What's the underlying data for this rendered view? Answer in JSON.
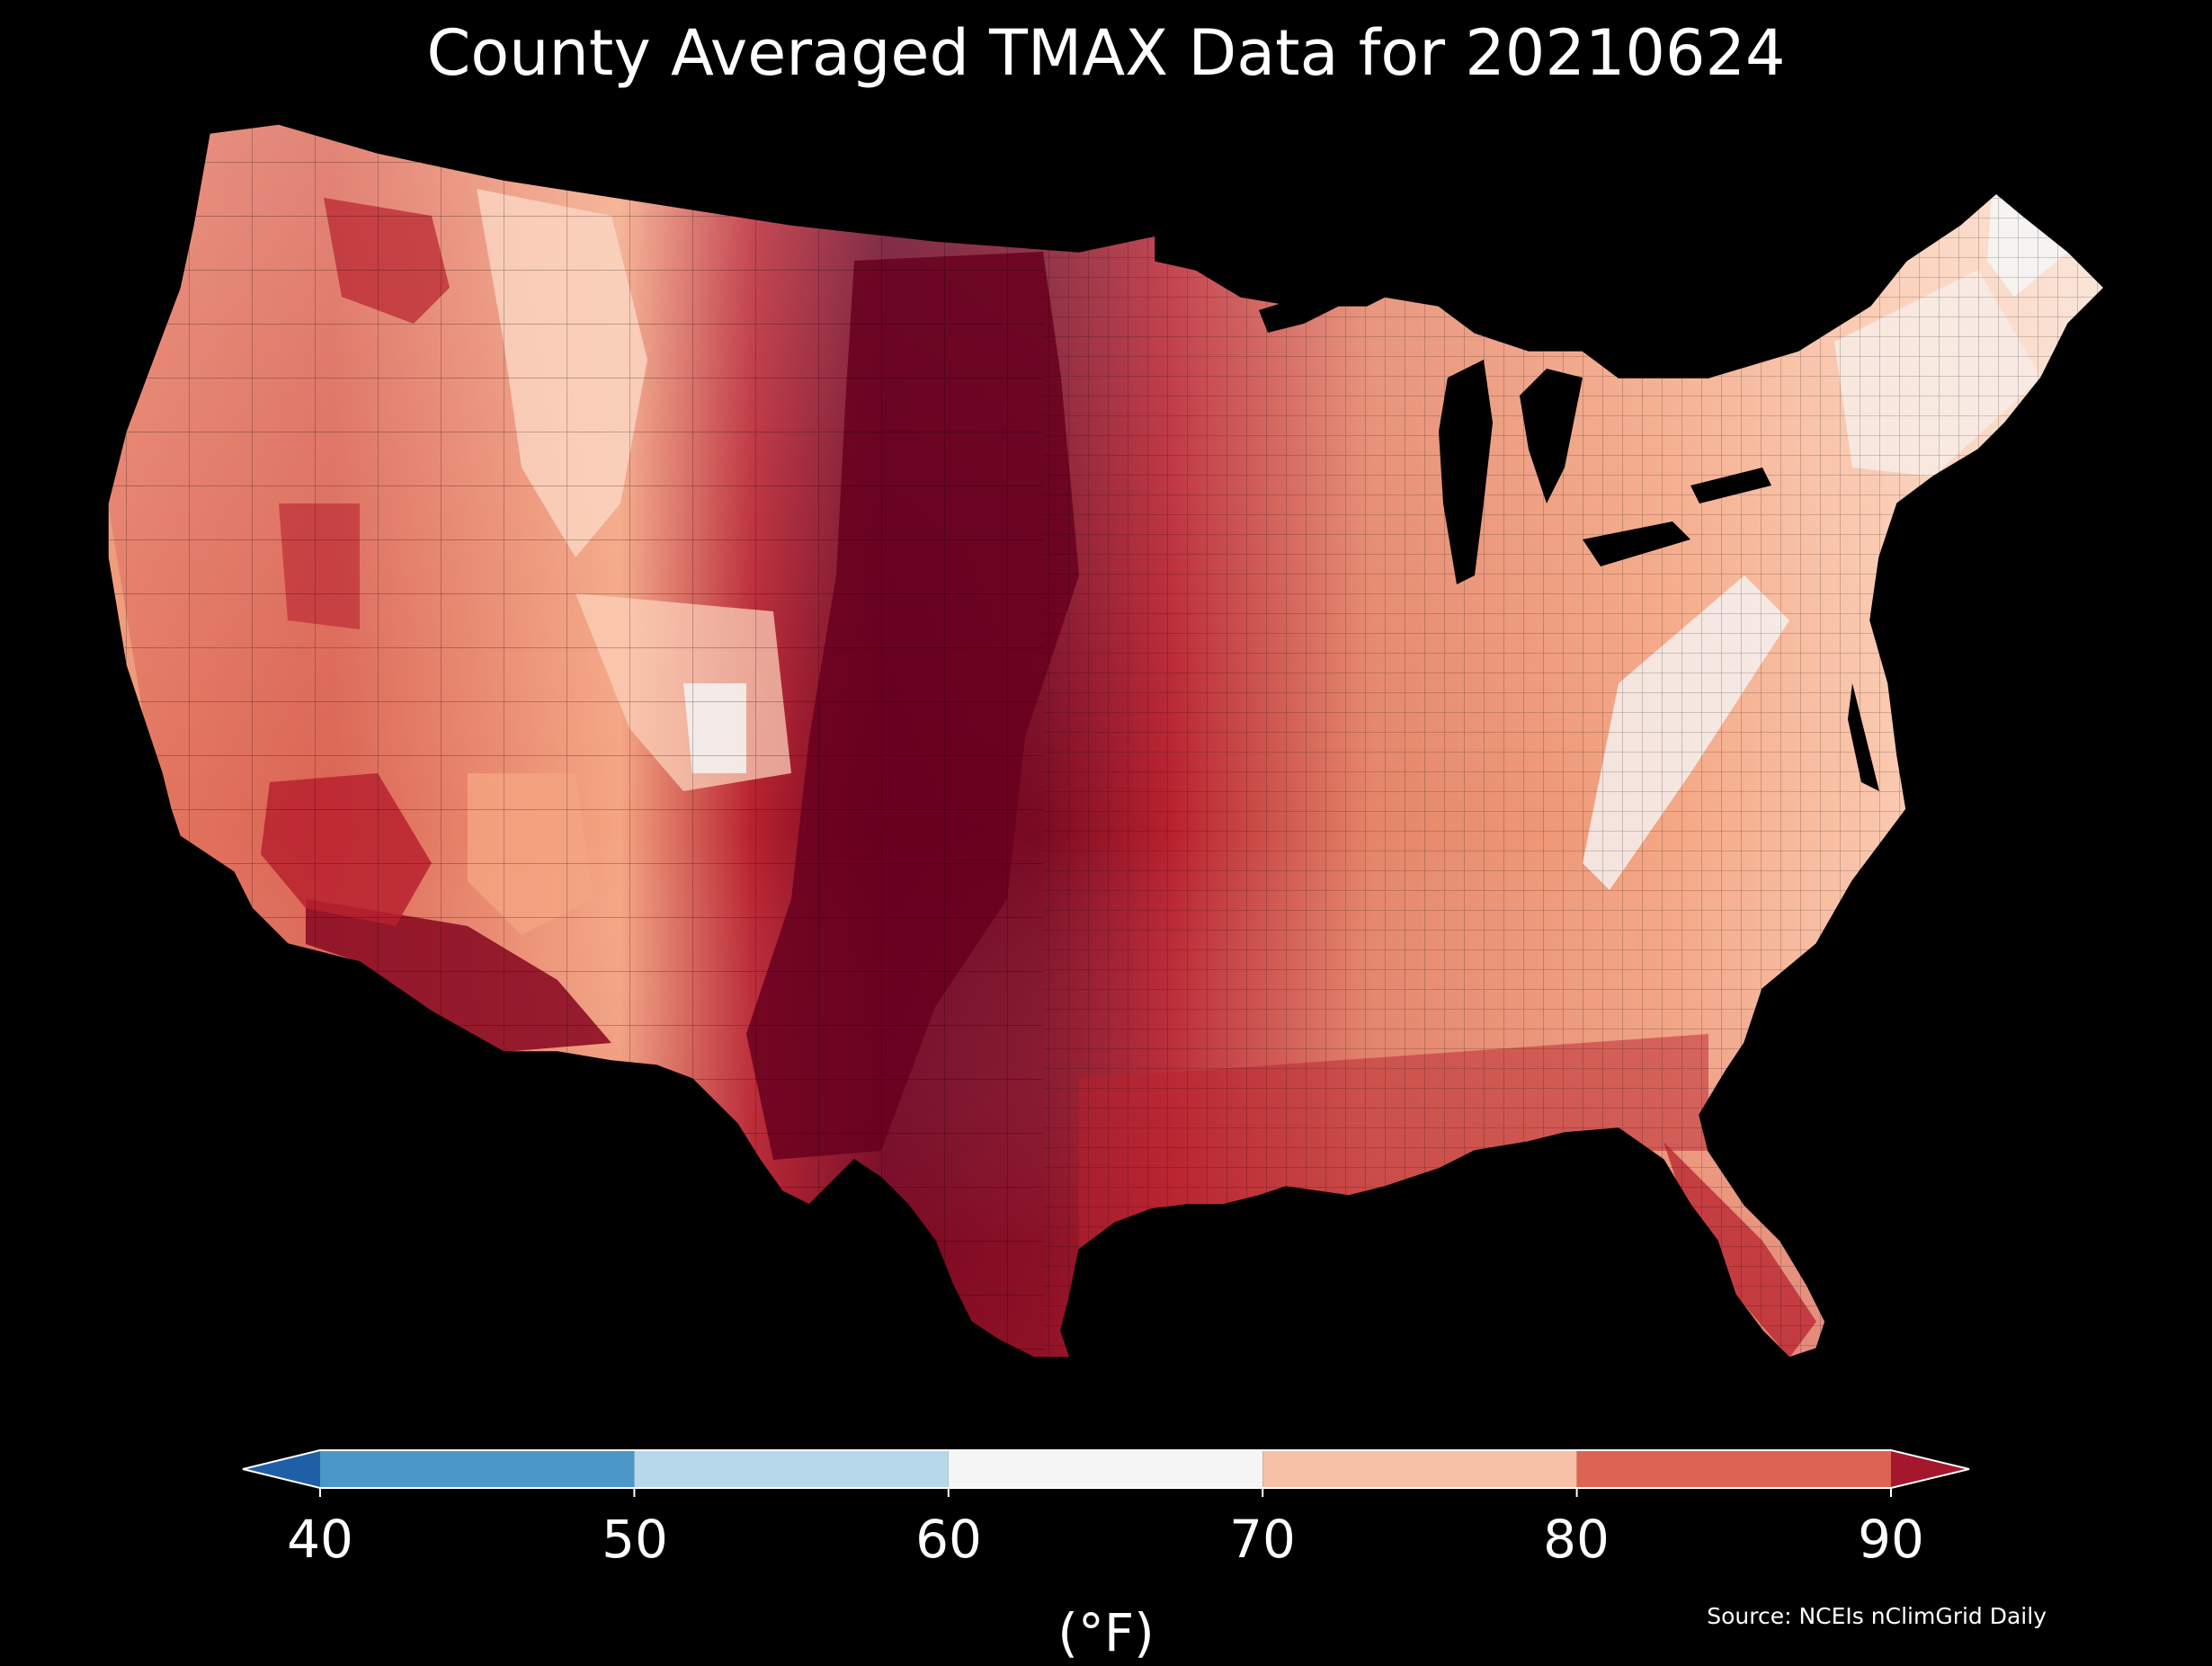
{
  "title": "County Averaged TMAX Data for 20210624",
  "colorbar": {
    "ticks": [
      "40",
      "50",
      "60",
      "70",
      "80",
      "90"
    ],
    "unit": "(°F)",
    "bins": [
      {
        "range": [
          30,
          40
        ],
        "color": "#1f5fa6"
      },
      {
        "range": [
          40,
          50
        ],
        "color": "#4b97c8"
      },
      {
        "range": [
          50,
          60
        ],
        "color": "#b7d8ea"
      },
      {
        "range": [
          60,
          70
        ],
        "color": "#f5f5f5"
      },
      {
        "range": [
          70,
          80
        ],
        "color": "#f6c1a6"
      },
      {
        "range": [
          80,
          90
        ],
        "color": "#db6453"
      },
      {
        "range": [
          90,
          100
        ],
        "color": "#a4172c"
      }
    ]
  },
  "source": "Source: NCEIs nClimGrid Daily",
  "map_colors": {
    "hottest": "#67001f",
    "very_hot": "#8c0d25",
    "hot": "#b8212e",
    "warm": "#db6453",
    "mild": "#f4a582",
    "cool": "#fbd7c3",
    "coolest": "#f5f5f5",
    "water": "#000000",
    "border": "#000000"
  }
}
